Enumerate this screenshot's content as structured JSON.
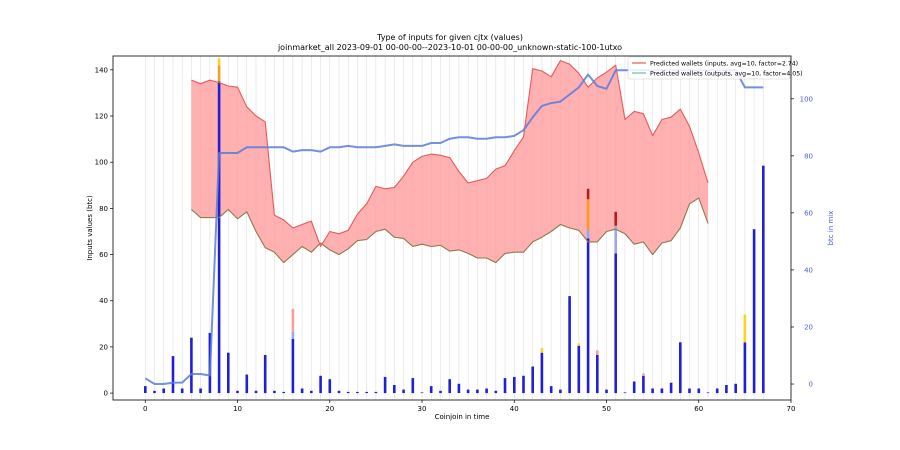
{
  "chart_data": {
    "type": "bar",
    "title": "Type of inputs for given cjtx (values)",
    "subtitle": "joinmarket_all 2023-09-01 00-00-00--2023-10-01 00-00-00_unknown-static-100-1utxo",
    "xlabel": "Coinjoin in time",
    "ylabel": "Inputs values (btc)",
    "y2label": "btc in mix",
    "xlim": [
      -3.5,
      70
    ],
    "ylim": [
      -3,
      146
    ],
    "y2lim": [
      -5.6,
      115
    ],
    "xticks": [
      0,
      10,
      20,
      30,
      40,
      50,
      60,
      70
    ],
    "yticks": [
      0,
      20,
      40,
      60,
      80,
      100,
      120,
      140
    ],
    "y2ticks": [
      0,
      20,
      40,
      60,
      80,
      100
    ],
    "legend": {
      "placement": "top-right",
      "entries": [
        {
          "label": "Predicted wallets (inputs, avg=10, factor=2.74)",
          "color": "#e8585a"
        },
        {
          "label": "Predicted wallets (outputs, avg=10, factor=4.05)",
          "color": "#6fb7a6"
        }
      ]
    },
    "bars": [
      {
        "x": 0,
        "blue": 3
      },
      {
        "x": 1,
        "blue": 1
      },
      {
        "x": 2,
        "blue": 2
      },
      {
        "x": 3,
        "blue": 16
      },
      {
        "x": 4,
        "blue": 2
      },
      {
        "x": 5,
        "blue": 24
      },
      {
        "x": 6,
        "blue": 2
      },
      {
        "x": 7,
        "blue": 26
      },
      {
        "x": 8,
        "blue": 135,
        "orange": 7,
        "gold": 3
      },
      {
        "x": 9,
        "blue": 17.5
      },
      {
        "x": 10,
        "blue": 1
      },
      {
        "x": 11,
        "blue": 8
      },
      {
        "x": 12,
        "blue": 1
      },
      {
        "x": 13,
        "blue": 16.5
      },
      {
        "x": 14,
        "blue": 1
      },
      {
        "x": 15,
        "blue": 0.5
      },
      {
        "x": 16,
        "blue": 23.5,
        "lightblue": 3,
        "salmon": 10
      },
      {
        "x": 17,
        "blue": 2
      },
      {
        "x": 18,
        "blue": 1
      },
      {
        "x": 19,
        "blue": 7.5
      },
      {
        "x": 20,
        "blue": 6
      },
      {
        "x": 21,
        "blue": 1
      },
      {
        "x": 22,
        "blue": 0.5
      },
      {
        "x": 23,
        "blue": 0.5
      },
      {
        "x": 24,
        "blue": 0.5
      },
      {
        "x": 25,
        "blue": 0.5
      },
      {
        "x": 26,
        "blue": 7
      },
      {
        "x": 27,
        "blue": 3.5
      },
      {
        "x": 28,
        "blue": 1.5
      },
      {
        "x": 29,
        "blue": 6.5
      },
      {
        "x": 30,
        "blue": 0.3
      },
      {
        "x": 31,
        "blue": 3
      },
      {
        "x": 32,
        "blue": 1
      },
      {
        "x": 33,
        "blue": 6
      },
      {
        "x": 34,
        "blue": 4
      },
      {
        "x": 35,
        "blue": 1.5
      },
      {
        "x": 36,
        "blue": 1.5
      },
      {
        "x": 37,
        "blue": 2
      },
      {
        "x": 38,
        "blue": 1
      },
      {
        "x": 39,
        "blue": 6.5
      },
      {
        "x": 40,
        "blue": 7
      },
      {
        "x": 41,
        "blue": 7.5
      },
      {
        "x": 42,
        "blue": 11.5
      },
      {
        "x": 43,
        "blue": 17.5,
        "gold": 2
      },
      {
        "x": 44,
        "blue": 3
      },
      {
        "x": 45,
        "blue": 1.5
      },
      {
        "x": 46,
        "blue": 42
      },
      {
        "x": 47,
        "blue": 20.5,
        "gold": 1
      },
      {
        "x": 48,
        "blue": 67,
        "lightblue": 4,
        "orange": 13,
        "darkred": 4.5
      },
      {
        "x": 49,
        "blue": 16.5,
        "salmon": 2
      },
      {
        "x": 50,
        "blue": 1.5
      },
      {
        "x": 51,
        "blue": 60.5,
        "lightblue": 12,
        "darkred": 6
      },
      {
        "x": 52,
        "blue": 0.3
      },
      {
        "x": 53,
        "blue": 5
      },
      {
        "x": 54,
        "blue": 7.5,
        "salmon": 1
      },
      {
        "x": 55,
        "blue": 2
      },
      {
        "x": 56,
        "blue": 2
      },
      {
        "x": 57,
        "blue": 4.5
      },
      {
        "x": 58,
        "blue": 22
      },
      {
        "x": 59,
        "blue": 2
      },
      {
        "x": 60,
        "blue": 2
      },
      {
        "x": 61,
        "blue": 0.3
      },
      {
        "x": 62,
        "blue": 2
      },
      {
        "x": 63,
        "blue": 3.5
      },
      {
        "x": 64,
        "blue": 4
      },
      {
        "x": 65,
        "blue": 22,
        "gold": 12
      },
      {
        "x": 66,
        "blue": 71
      },
      {
        "x": 67,
        "blue": 98.5
      }
    ],
    "inputs_series": {
      "x": [
        5,
        6,
        7,
        8,
        9,
        10,
        11,
        12,
        13,
        14,
        15,
        16,
        17,
        18,
        19,
        20,
        21,
        22,
        23,
        24,
        25,
        26,
        27,
        28,
        29,
        30,
        31,
        32,
        33,
        34,
        35,
        36,
        37,
        38,
        39,
        40,
        41,
        42,
        43,
        44,
        45,
        46,
        47,
        48,
        49,
        50,
        51,
        52,
        53,
        54,
        55,
        56,
        57,
        58,
        59,
        60,
        61
      ],
      "y": [
        135.5,
        134,
        135.5,
        134.5,
        133,
        132.5,
        124,
        120,
        117.5,
        77,
        75,
        71.5,
        73,
        74.5,
        63.5,
        70,
        69,
        70.5,
        77.5,
        82,
        89.5,
        88.5,
        89,
        94,
        100,
        102.5,
        103.5,
        103,
        102,
        96,
        91,
        92,
        93,
        97,
        98.5,
        105,
        111,
        140.5,
        139.5,
        137,
        144,
        142.5,
        138.5,
        132.5,
        136.5,
        139,
        142,
        118.5,
        122,
        121,
        111.5,
        118.5,
        119.5,
        123,
        115.5,
        104,
        91
      ]
    },
    "outputs_series": {
      "x": [
        5,
        6,
        7,
        8,
        9,
        10,
        11,
        12,
        13,
        14,
        15,
        16,
        17,
        18,
        19,
        20,
        21,
        22,
        23,
        24,
        25,
        26,
        27,
        28,
        29,
        30,
        31,
        32,
        33,
        34,
        35,
        36,
        37,
        38,
        39,
        40,
        41,
        42,
        43,
        44,
        45,
        46,
        47,
        48,
        49,
        50,
        51,
        52,
        53,
        54,
        55,
        56,
        57,
        58,
        59,
        60,
        61
      ],
      "y": [
        79.5,
        76,
        76,
        76,
        79.5,
        75.5,
        78.5,
        70,
        63,
        61,
        56.5,
        60,
        63.5,
        61,
        65,
        62,
        60,
        62.5,
        66,
        66.5,
        70,
        71,
        67.5,
        67,
        63.5,
        64.5,
        63.5,
        64,
        61.5,
        62,
        60.5,
        58.5,
        58.5,
        56.5,
        60.5,
        61,
        61,
        65.5,
        67.5,
        70,
        73,
        71.5,
        70.5,
        65.5,
        65.5,
        70,
        71,
        69,
        64.5,
        65.5,
        60,
        65,
        66,
        71.5,
        82,
        84.5,
        73.5
      ]
    },
    "btc_in_mix": {
      "x": [
        0,
        1,
        2,
        3,
        4,
        5,
        6,
        7,
        8,
        9,
        10,
        11,
        12,
        13,
        14,
        15,
        16,
        17,
        18,
        19,
        20,
        21,
        22,
        23,
        24,
        25,
        26,
        27,
        28,
        29,
        30,
        31,
        32,
        33,
        34,
        35,
        36,
        37,
        38,
        39,
        40,
        41,
        42,
        43,
        44,
        45,
        46,
        47,
        48,
        49,
        50,
        51,
        52,
        53,
        54,
        55,
        56,
        57,
        58,
        59,
        60,
        61,
        62,
        63,
        64,
        65,
        66,
        67
      ],
      "y": [
        2,
        0,
        0,
        0.5,
        0.5,
        3.5,
        3.5,
        3,
        81,
        81,
        81,
        83,
        83,
        83,
        83,
        83,
        81.5,
        82,
        82,
        81.5,
        83,
        83,
        83.5,
        83,
        83,
        83,
        83.5,
        84,
        83.5,
        83.5,
        83.5,
        84.5,
        84.5,
        86,
        86.5,
        86.5,
        86,
        86,
        86.5,
        86.5,
        87,
        89,
        93.5,
        97.5,
        98.5,
        99,
        101.5,
        104,
        108.5,
        104.5,
        103.5,
        110,
        110,
        110,
        110,
        110,
        110,
        110,
        110,
        110,
        110,
        110,
        110,
        110,
        110,
        104,
        104,
        104
      ]
    }
  }
}
